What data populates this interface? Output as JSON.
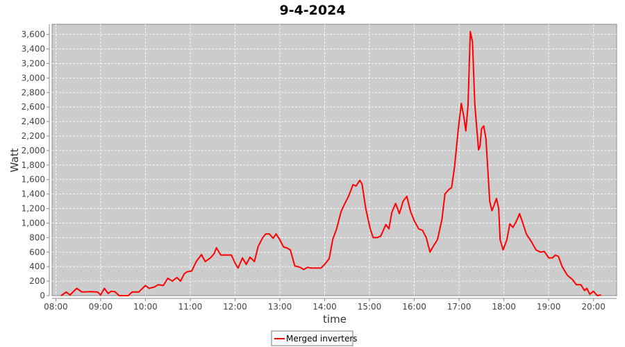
{
  "chart_data": {
    "type": "line",
    "title": "9-4-2024",
    "xlabel": "time",
    "ylabel": "Watt",
    "xlim": [
      "07:55",
      "20:31"
    ],
    "ylim": [
      0,
      3740
    ],
    "grid": true,
    "legend_placement": "bottom",
    "background": "#cccccc",
    "line_color": "#ff0000",
    "x_ticks": [
      "08:00",
      "09:00",
      "10:00",
      "11:00",
      "12:00",
      "13:00",
      "14:00",
      "15:00",
      "16:00",
      "17:00",
      "18:00",
      "19:00",
      "20:00"
    ],
    "y_ticks": [
      "0",
      "200",
      "400",
      "600",
      "800",
      "1,000",
      "1,200",
      "1,400",
      "1,600",
      "1,800",
      "2,000",
      "2,200",
      "2,400",
      "2,600",
      "2,800",
      "3,000",
      "3,200",
      "3,400",
      "3,600"
    ],
    "series": [
      {
        "name": "Merged inverters",
        "points": [
          [
            "08:07",
            0
          ],
          [
            "08:14",
            50
          ],
          [
            "08:19",
            10
          ],
          [
            "08:28",
            100
          ],
          [
            "08:35",
            50
          ],
          [
            "08:46",
            55
          ],
          [
            "08:56",
            50
          ],
          [
            "09:00",
            10
          ],
          [
            "09:05",
            100
          ],
          [
            "09:10",
            30
          ],
          [
            "09:14",
            60
          ],
          [
            "09:19",
            55
          ],
          [
            "09:25",
            0
          ],
          [
            "09:37",
            0
          ],
          [
            "09:42",
            50
          ],
          [
            "09:51",
            50
          ],
          [
            "10:00",
            140
          ],
          [
            "10:05",
            100
          ],
          [
            "10:12",
            120
          ],
          [
            "10:17",
            150
          ],
          [
            "10:24",
            140
          ],
          [
            "10:30",
            240
          ],
          [
            "10:36",
            200
          ],
          [
            "10:42",
            250
          ],
          [
            "10:47",
            200
          ],
          [
            "10:52",
            300
          ],
          [
            "10:56",
            330
          ],
          [
            "11:02",
            340
          ],
          [
            "11:08",
            470
          ],
          [
            "11:15",
            565
          ],
          [
            "11:20",
            470
          ],
          [
            "11:27",
            520
          ],
          [
            "11:32",
            580
          ],
          [
            "11:35",
            660
          ],
          [
            "11:41",
            560
          ],
          [
            "11:48",
            560
          ],
          [
            "11:55",
            560
          ],
          [
            "12:00",
            450
          ],
          [
            "12:04",
            380
          ],
          [
            "12:10",
            520
          ],
          [
            "12:15",
            430
          ],
          [
            "12:20",
            530
          ],
          [
            "12:26",
            470
          ],
          [
            "12:31",
            680
          ],
          [
            "12:37",
            800
          ],
          [
            "12:41",
            850
          ],
          [
            "12:46",
            850
          ],
          [
            "12:51",
            790
          ],
          [
            "12:55",
            850
          ],
          [
            "13:00",
            770
          ],
          [
            "13:05",
            670
          ],
          [
            "13:09",
            660
          ],
          [
            "13:14",
            630
          ],
          [
            "13:20",
            410
          ],
          [
            "13:27",
            390
          ],
          [
            "13:32",
            360
          ],
          [
            "13:37",
            390
          ],
          [
            "13:42",
            380
          ],
          [
            "13:48",
            380
          ],
          [
            "13:55",
            380
          ],
          [
            "14:00",
            430
          ],
          [
            "14:06",
            510
          ],
          [
            "14:11",
            780
          ],
          [
            "14:16",
            920
          ],
          [
            "14:22",
            1160
          ],
          [
            "14:27",
            1270
          ],
          [
            "14:32",
            1370
          ],
          [
            "14:38",
            1530
          ],
          [
            "14:42",
            1510
          ],
          [
            "14:47",
            1590
          ],
          [
            "14:50",
            1540
          ],
          [
            "14:55",
            1200
          ],
          [
            "15:01",
            920
          ],
          [
            "15:05",
            800
          ],
          [
            "15:10",
            800
          ],
          [
            "15:15",
            820
          ],
          [
            "15:22",
            980
          ],
          [
            "15:26",
            920
          ],
          [
            "15:30",
            1150
          ],
          [
            "15:35",
            1270
          ],
          [
            "15:40",
            1130
          ],
          [
            "15:45",
            1300
          ],
          [
            "15:50",
            1370
          ],
          [
            "15:55",
            1160
          ],
          [
            "16:00",
            1030
          ],
          [
            "16:06",
            920
          ],
          [
            "16:11",
            900
          ],
          [
            "16:16",
            800
          ],
          [
            "16:21",
            600
          ],
          [
            "16:26",
            690
          ],
          [
            "16:31",
            770
          ],
          [
            "16:37",
            1050
          ],
          [
            "16:41",
            1400
          ],
          [
            "16:46",
            1460
          ],
          [
            "16:50",
            1490
          ],
          [
            "16:54",
            1780
          ],
          [
            "16:59",
            2300
          ],
          [
            "17:03",
            2650
          ],
          [
            "17:06",
            2490
          ],
          [
            "17:09",
            2270
          ],
          [
            "17:12",
            2630
          ],
          [
            "17:15",
            3640
          ],
          [
            "17:18",
            3500
          ],
          [
            "17:21",
            2640
          ],
          [
            "17:26",
            2010
          ],
          [
            "17:28",
            2060
          ],
          [
            "17:30",
            2300
          ],
          [
            "17:33",
            2340
          ],
          [
            "17:36",
            2160
          ],
          [
            "17:41",
            1300
          ],
          [
            "17:44",
            1170
          ],
          [
            "17:47",
            1250
          ],
          [
            "17:50",
            1340
          ],
          [
            "17:53",
            1200
          ],
          [
            "17:55",
            770
          ],
          [
            "17:59",
            630
          ],
          [
            "18:04",
            770
          ],
          [
            "18:08",
            990
          ],
          [
            "18:12",
            940
          ],
          [
            "18:16",
            1010
          ],
          [
            "18:21",
            1130
          ],
          [
            "18:25",
            1010
          ],
          [
            "18:30",
            850
          ],
          [
            "18:37",
            740
          ],
          [
            "18:43",
            630
          ],
          [
            "18:49",
            600
          ],
          [
            "18:54",
            610
          ],
          [
            "19:00",
            520
          ],
          [
            "19:05",
            520
          ],
          [
            "19:09",
            560
          ],
          [
            "19:13",
            540
          ],
          [
            "19:18",
            400
          ],
          [
            "19:25",
            280
          ],
          [
            "19:32",
            220
          ],
          [
            "19:37",
            150
          ],
          [
            "19:43",
            150
          ],
          [
            "19:48",
            70
          ],
          [
            "19:51",
            100
          ],
          [
            "19:55",
            20
          ],
          [
            "20:00",
            60
          ],
          [
            "20:05",
            0
          ],
          [
            "20:10",
            10
          ]
        ]
      }
    ]
  }
}
